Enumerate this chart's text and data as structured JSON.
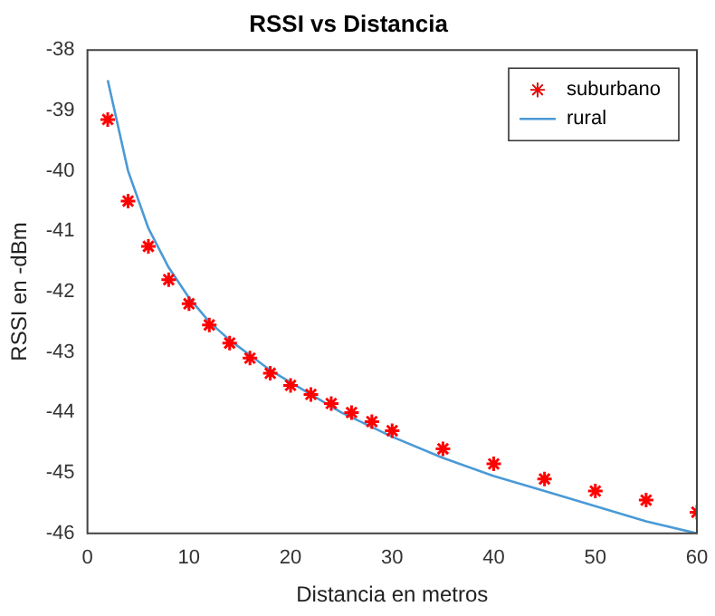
{
  "chart_data": {
    "type": "scatter",
    "title": "RSSI vs Distancia",
    "xlabel": "Distancia en metros",
    "ylabel": "RSSI en -dBm",
    "xlim": [
      0,
      60
    ],
    "xticks": [
      0,
      10,
      20,
      30,
      40,
      50,
      60
    ],
    "ylim": [
      -46,
      -38
    ],
    "yticks": [
      -46,
      -45,
      -44,
      -43,
      -42,
      -41,
      -40,
      -39,
      -38
    ],
    "grid": false,
    "legend": "top right",
    "series": [
      {
        "name": "suburbano",
        "marker": "cross",
        "color": "#ff0000",
        "x": [
          2,
          4,
          6,
          8,
          10,
          12,
          14,
          16,
          18,
          20,
          22,
          24,
          26,
          28,
          30,
          35,
          40,
          45,
          50,
          55,
          60
        ],
        "values": [
          -39.15,
          -40.5,
          -41.25,
          -41.8,
          -42.2,
          -42.55,
          -42.85,
          -43.1,
          -43.35,
          -43.55,
          -43.7,
          -43.85,
          -44.0,
          -44.15,
          -44.3,
          -44.6,
          -44.85,
          -45.1,
          -45.3,
          -45.45,
          -45.65
        ]
      },
      {
        "name": "rural",
        "type": "line",
        "marker": "none",
        "line_style": "solid",
        "color": "#4a9ad6",
        "x": [
          2,
          4,
          6,
          8,
          10,
          12,
          14,
          16,
          18,
          20,
          25,
          30,
          35,
          40,
          45,
          50,
          55,
          60
        ],
        "values": [
          -38.5,
          -40.0,
          -40.95,
          -41.6,
          -42.1,
          -42.5,
          -42.8,
          -43.05,
          -43.3,
          -43.5,
          -44.0,
          -44.4,
          -44.75,
          -45.05,
          -45.3,
          -45.55,
          -45.8,
          -46.0
        ]
      }
    ]
  }
}
